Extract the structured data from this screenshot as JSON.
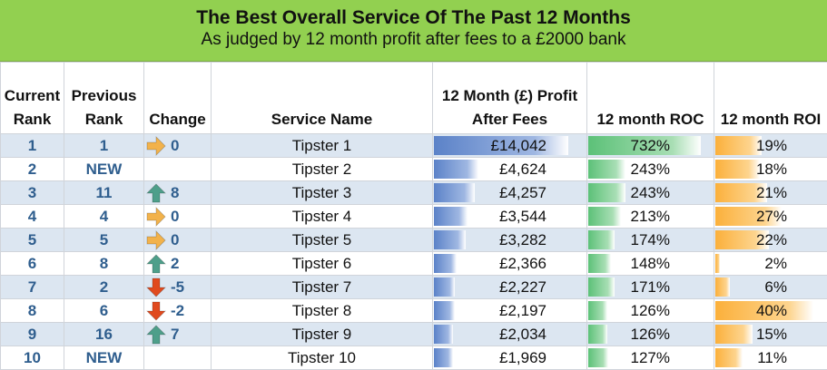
{
  "header": {
    "title": "The Best Overall Service Of The Past 12 Months",
    "subtitle": "As judged by 12 month profit after fees to a £2000 bank"
  },
  "columns": {
    "current_rank": "Current Rank",
    "previous_rank": "Previous Rank",
    "change": "Change",
    "service_name": "Service Name",
    "profit": "12 Month (£) Profit After Fees",
    "roc": "12 month ROC",
    "roi": "12 month ROI"
  },
  "colors": {
    "banner": "#92d050",
    "profit_bar": "#5b82c8",
    "roc_bar": "#5cc178",
    "roi_bar": "#fbb03b",
    "arrow_up": "#4e9f8a",
    "arrow_down": "#e04a1e",
    "arrow_flat": "#f2b24b"
  },
  "rows": [
    {
      "rank": "1",
      "prev": "1",
      "direction": "flat",
      "change": "0",
      "name": "Tipster 1",
      "profit": "£14,042",
      "profit_value": 14042,
      "roc": "732%",
      "roc_value": 732,
      "roi": "19%",
      "roi_value": 19
    },
    {
      "rank": "2",
      "prev": "NEW",
      "direction": "none",
      "change": "",
      "name": "Tipster 2",
      "profit": "£4,624",
      "profit_value": 4624,
      "roc": "243%",
      "roc_value": 243,
      "roi": "18%",
      "roi_value": 18
    },
    {
      "rank": "3",
      "prev": "11",
      "direction": "up",
      "change": "8",
      "name": "Tipster 3",
      "profit": "£4,257",
      "profit_value": 4257,
      "roc": "243%",
      "roc_value": 243,
      "roi": "21%",
      "roi_value": 21
    },
    {
      "rank": "4",
      "prev": "4",
      "direction": "flat",
      "change": "0",
      "name": "Tipster 4",
      "profit": "£3,544",
      "profit_value": 3544,
      "roc": "213%",
      "roc_value": 213,
      "roi": "27%",
      "roi_value": 27
    },
    {
      "rank": "5",
      "prev": "5",
      "direction": "flat",
      "change": "0",
      "name": "Tipster 5",
      "profit": "£3,282",
      "profit_value": 3282,
      "roc": "174%",
      "roc_value": 174,
      "roi": "22%",
      "roi_value": 22
    },
    {
      "rank": "6",
      "prev": "8",
      "direction": "up",
      "change": "2",
      "name": "Tipster 6",
      "profit": "£2,366",
      "profit_value": 2366,
      "roc": "148%",
      "roc_value": 148,
      "roi": "2%",
      "roi_value": 2
    },
    {
      "rank": "7",
      "prev": "2",
      "direction": "down",
      "change": "-5",
      "name": "Tipster 7",
      "profit": "£2,227",
      "profit_value": 2227,
      "roc": "171%",
      "roc_value": 171,
      "roi": "6%",
      "roi_value": 6
    },
    {
      "rank": "8",
      "prev": "6",
      "direction": "down",
      "change": "-2",
      "name": "Tipster 8",
      "profit": "£2,197",
      "profit_value": 2197,
      "roc": "126%",
      "roc_value": 126,
      "roi": "40%",
      "roi_value": 40
    },
    {
      "rank": "9",
      "prev": "16",
      "direction": "up",
      "change": "7",
      "name": "Tipster 9",
      "profit": "£2,034",
      "profit_value": 2034,
      "roc": "126%",
      "roc_value": 126,
      "roi": "15%",
      "roi_value": 15
    },
    {
      "rank": "10",
      "prev": "NEW",
      "direction": "none",
      "change": "",
      "name": "Tipster 10",
      "profit": "£1,969",
      "profit_value": 1969,
      "roc": "127%",
      "roc_value": 127,
      "roi": "11%",
      "roi_value": 11
    }
  ]
}
